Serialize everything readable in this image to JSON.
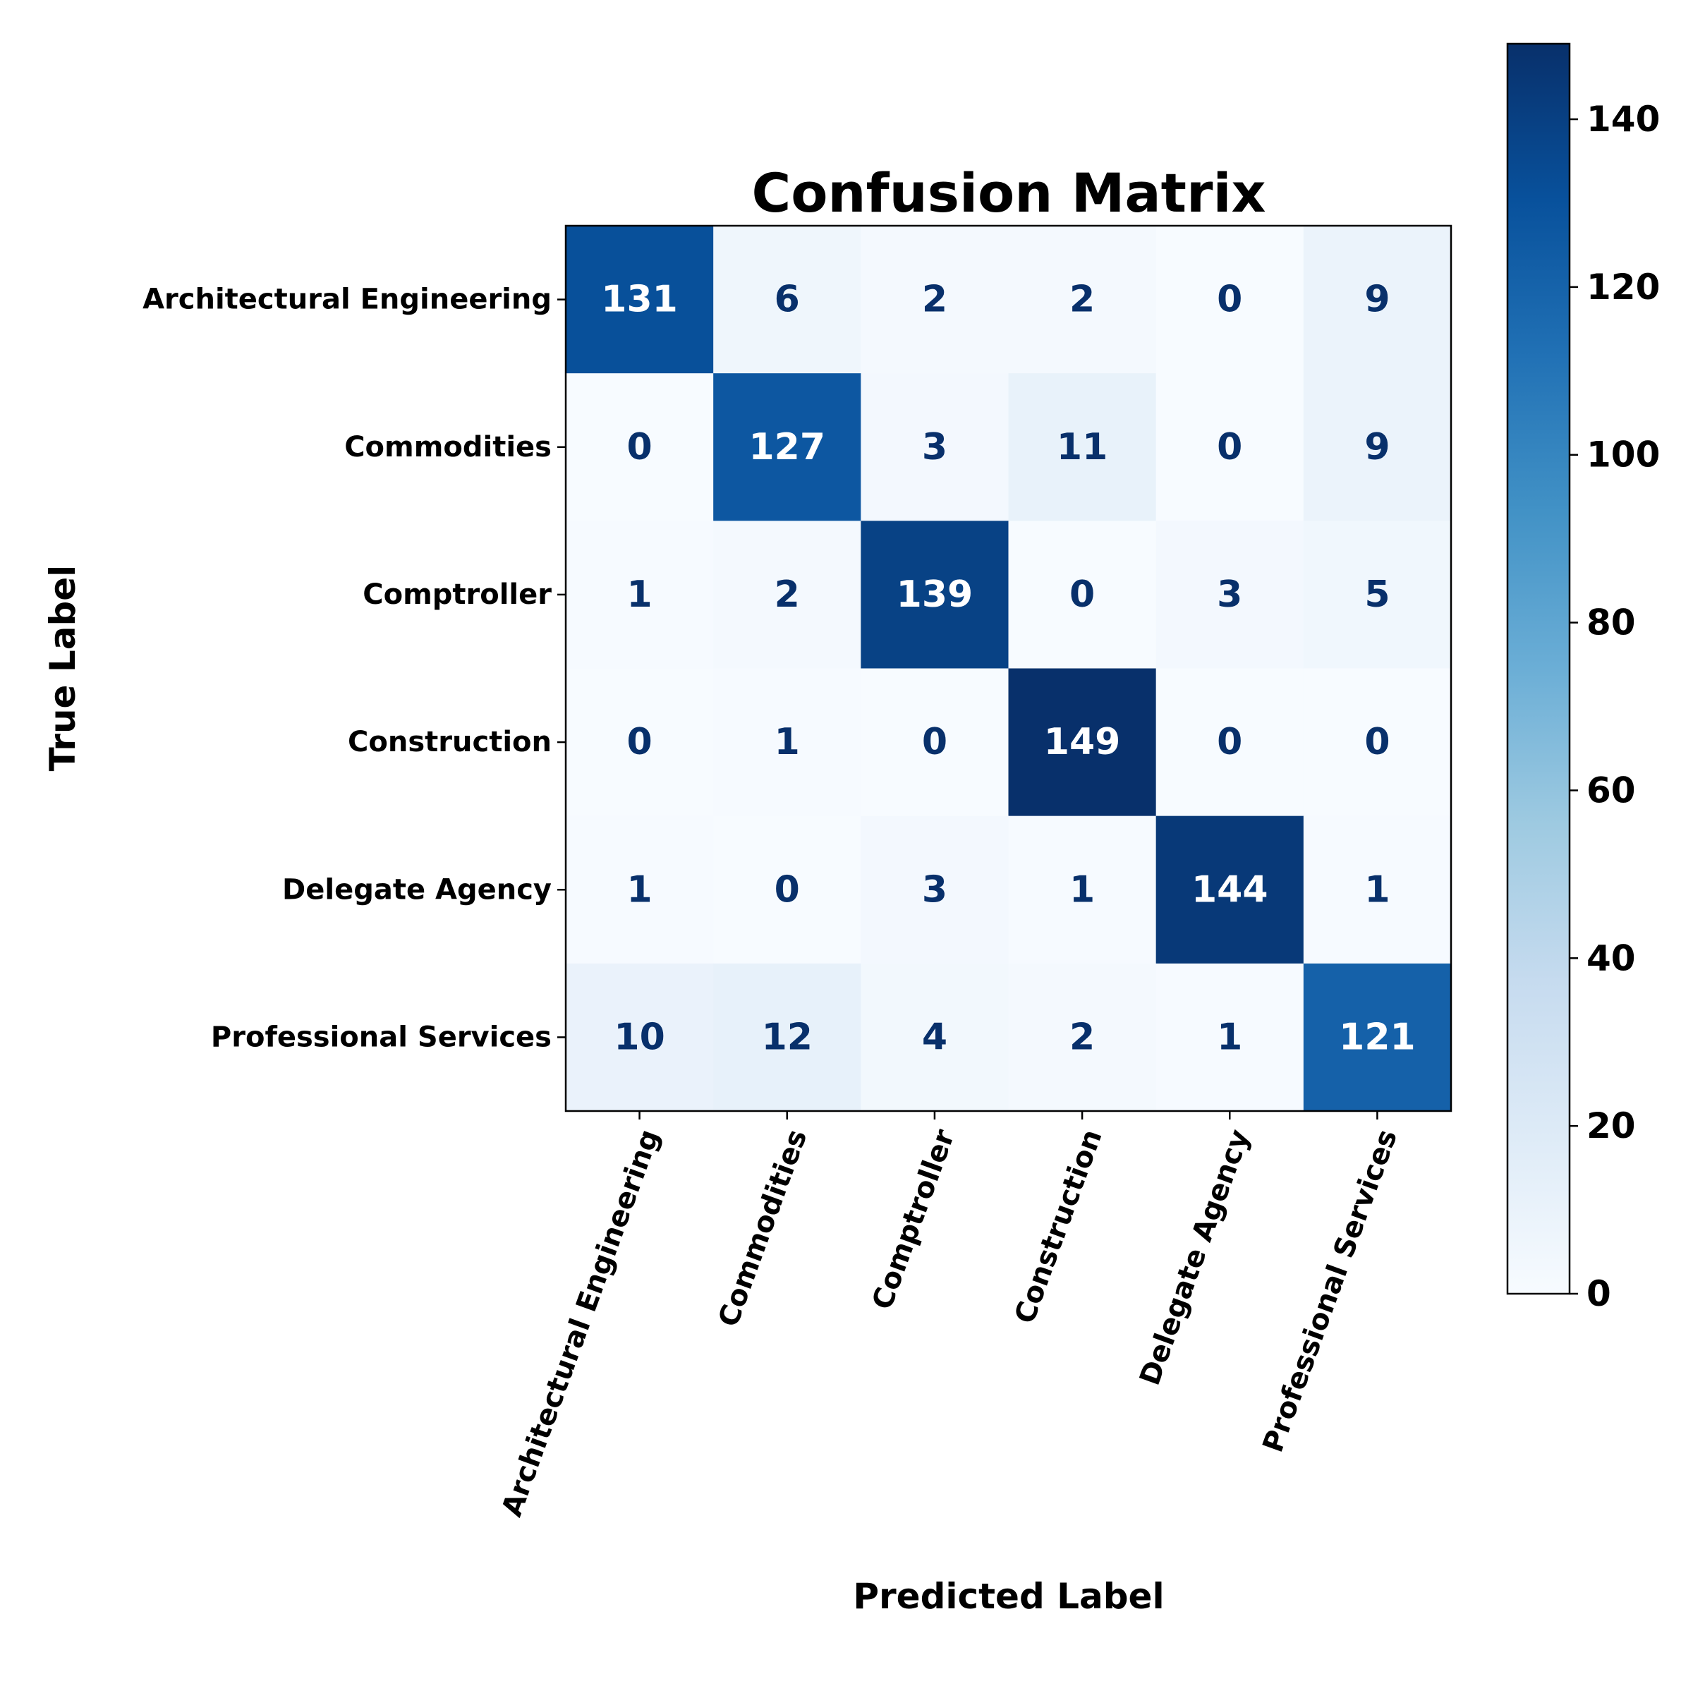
{
  "chart_data": {
    "type": "heatmap",
    "title": "Confusion Matrix",
    "xlabel": "Predicted Label",
    "ylabel": "True Label",
    "x_categories": [
      "Architectural Engineering",
      "Commodities",
      "Comptroller",
      "Construction",
      "Delegate Agency",
      "Professional Services"
    ],
    "y_categories": [
      "Architectural Engineering",
      "Commodities",
      "Comptroller",
      "Construction",
      "Delegate Agency",
      "Professional Services"
    ],
    "values": [
      [
        131,
        6,
        2,
        2,
        0,
        9
      ],
      [
        0,
        127,
        3,
        11,
        0,
        9
      ],
      [
        1,
        2,
        139,
        0,
        3,
        5
      ],
      [
        0,
        1,
        0,
        149,
        0,
        0
      ],
      [
        1,
        0,
        3,
        1,
        144,
        1
      ],
      [
        10,
        12,
        4,
        2,
        1,
        121
      ]
    ],
    "colormap": "Blues",
    "colorbar": {
      "range": [
        0,
        149
      ],
      "ticks": [
        0,
        20,
        40,
        60,
        80,
        100,
        120,
        140
      ]
    },
    "x_tick_rotation_deg": 70,
    "grid": false
  }
}
